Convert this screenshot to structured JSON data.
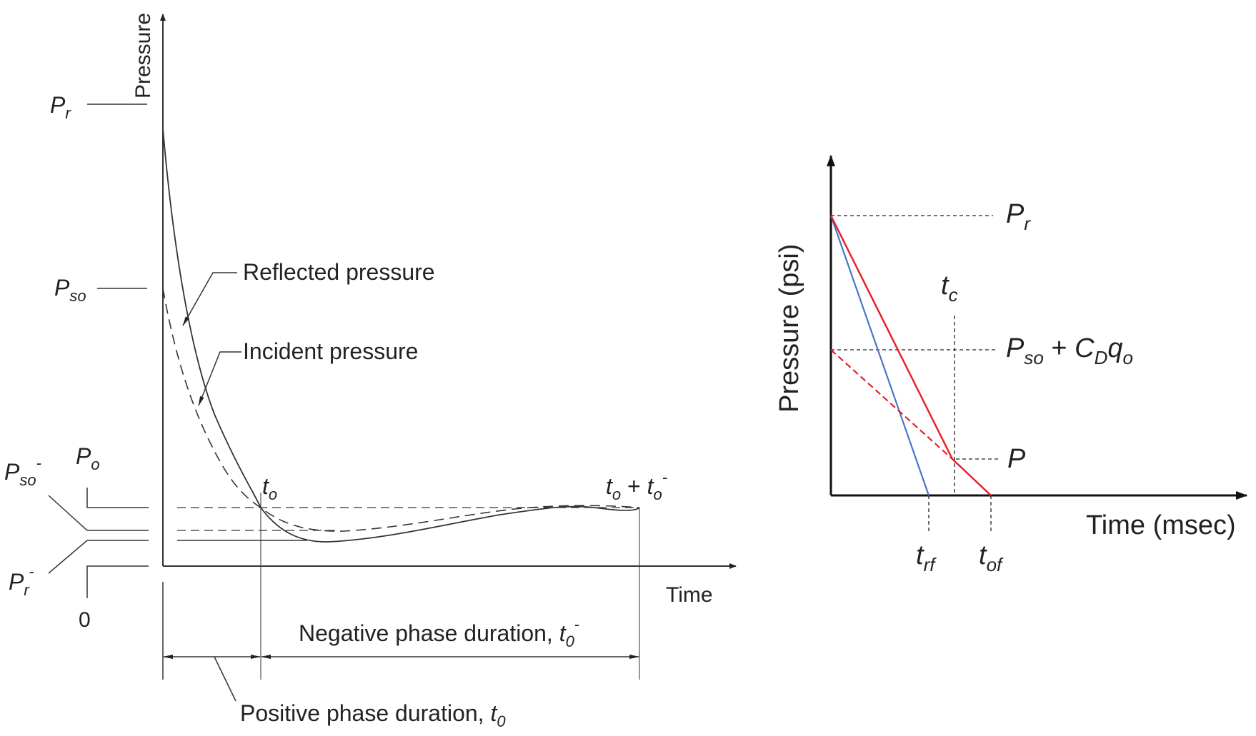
{
  "left_diagram": {
    "y_axis_label": "Pressure",
    "x_axis_label": "Time",
    "curve_labels": {
      "reflected": "Reflected pressure",
      "incident": "Incident pressure"
    },
    "pressure_levels": {
      "pr": {
        "base": "P",
        "sub": "r"
      },
      "pso": {
        "base": "P",
        "sub": "so"
      },
      "po": {
        "base": "P",
        "sub": "o"
      },
      "pso_neg": {
        "base": "P",
        "sub": "so",
        "sup": "-"
      },
      "pr_neg": {
        "base": "P",
        "sub": "r",
        "sup": "-"
      },
      "zero": "0"
    },
    "time_marks": {
      "to": {
        "base": "t",
        "sub": "o"
      },
      "to_plus": {
        "a": "t",
        "a_sub": "o",
        "op": " + ",
        "b": "t",
        "b_sub": "o",
        "b_sup": "-"
      }
    },
    "durations": {
      "negative": {
        "text": "Negative phase duration, ",
        "base": "t",
        "sub": "0",
        "sup": "-"
      },
      "positive": {
        "text": "Positive phase duration, ",
        "base": "t",
        "sub": "0"
      }
    }
  },
  "right_diagram": {
    "y_axis_label": "Pressure (psi)",
    "x_axis_label": "Time (msec)",
    "labels": {
      "pr": {
        "base": "P",
        "sub": "r"
      },
      "pso_cdqo": {
        "a": "P",
        "a_sub": "so",
        "op": " + ",
        "b": "C",
        "b_sub": "D",
        "c": "q",
        "c_sub": "o"
      },
      "p": "P",
      "tc": {
        "base": "t",
        "sub": "c"
      },
      "trf": {
        "base": "t",
        "sub": "rf"
      },
      "tof": {
        "base": "t",
        "sub": "of"
      }
    },
    "colors": {
      "red": "#e8202a",
      "blue": "#4a74c4"
    }
  }
}
